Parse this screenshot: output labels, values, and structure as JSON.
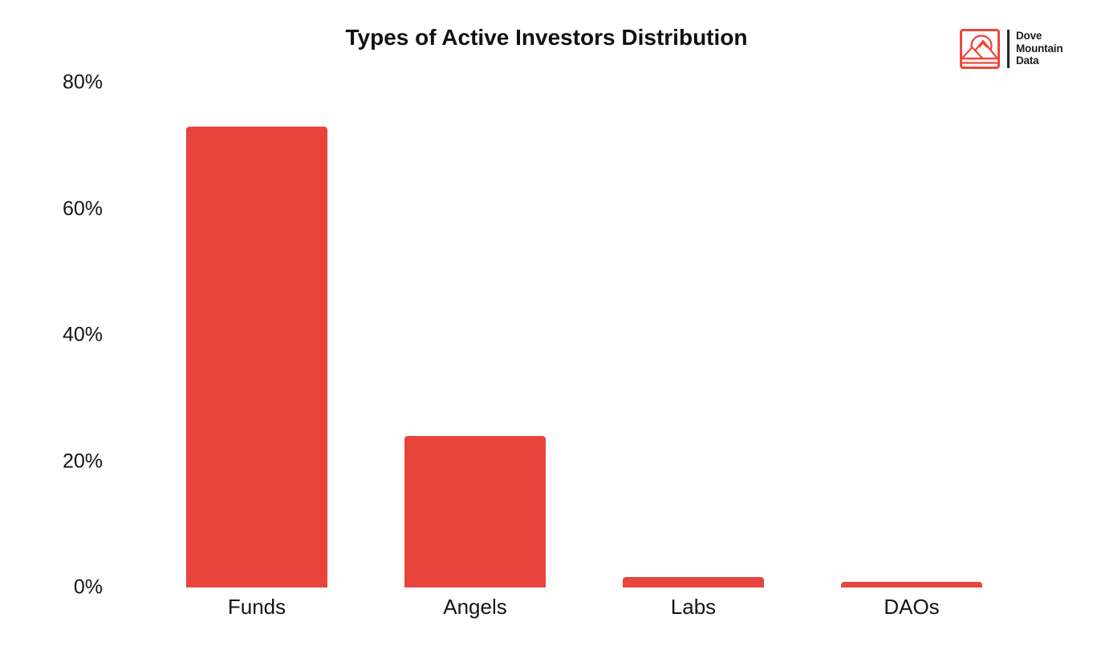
{
  "title": "Types of Active Investors Distribution",
  "logo": {
    "lines": [
      "Dove",
      "Mountain",
      "Data"
    ]
  },
  "colors": {
    "bar": "#e8443c",
    "logo_red": "#ef4639",
    "text": "#141414"
  },
  "chart_data": {
    "type": "bar",
    "title": "Types of Active Investors Distribution",
    "categories": [
      "Funds",
      "Angels",
      "Labs",
      "DAOs"
    ],
    "values": [
      73,
      24,
      1.7,
      0.9
    ],
    "unit": "%",
    "xlabel": "",
    "ylabel": "",
    "ylim": [
      0,
      80
    ],
    "yticks": [
      0,
      20,
      40,
      60,
      80
    ],
    "ytick_labels": [
      "0%",
      "20%",
      "40%",
      "60%",
      "80%"
    ],
    "grid": false,
    "legend": false,
    "bar_color": "#e8443c"
  }
}
